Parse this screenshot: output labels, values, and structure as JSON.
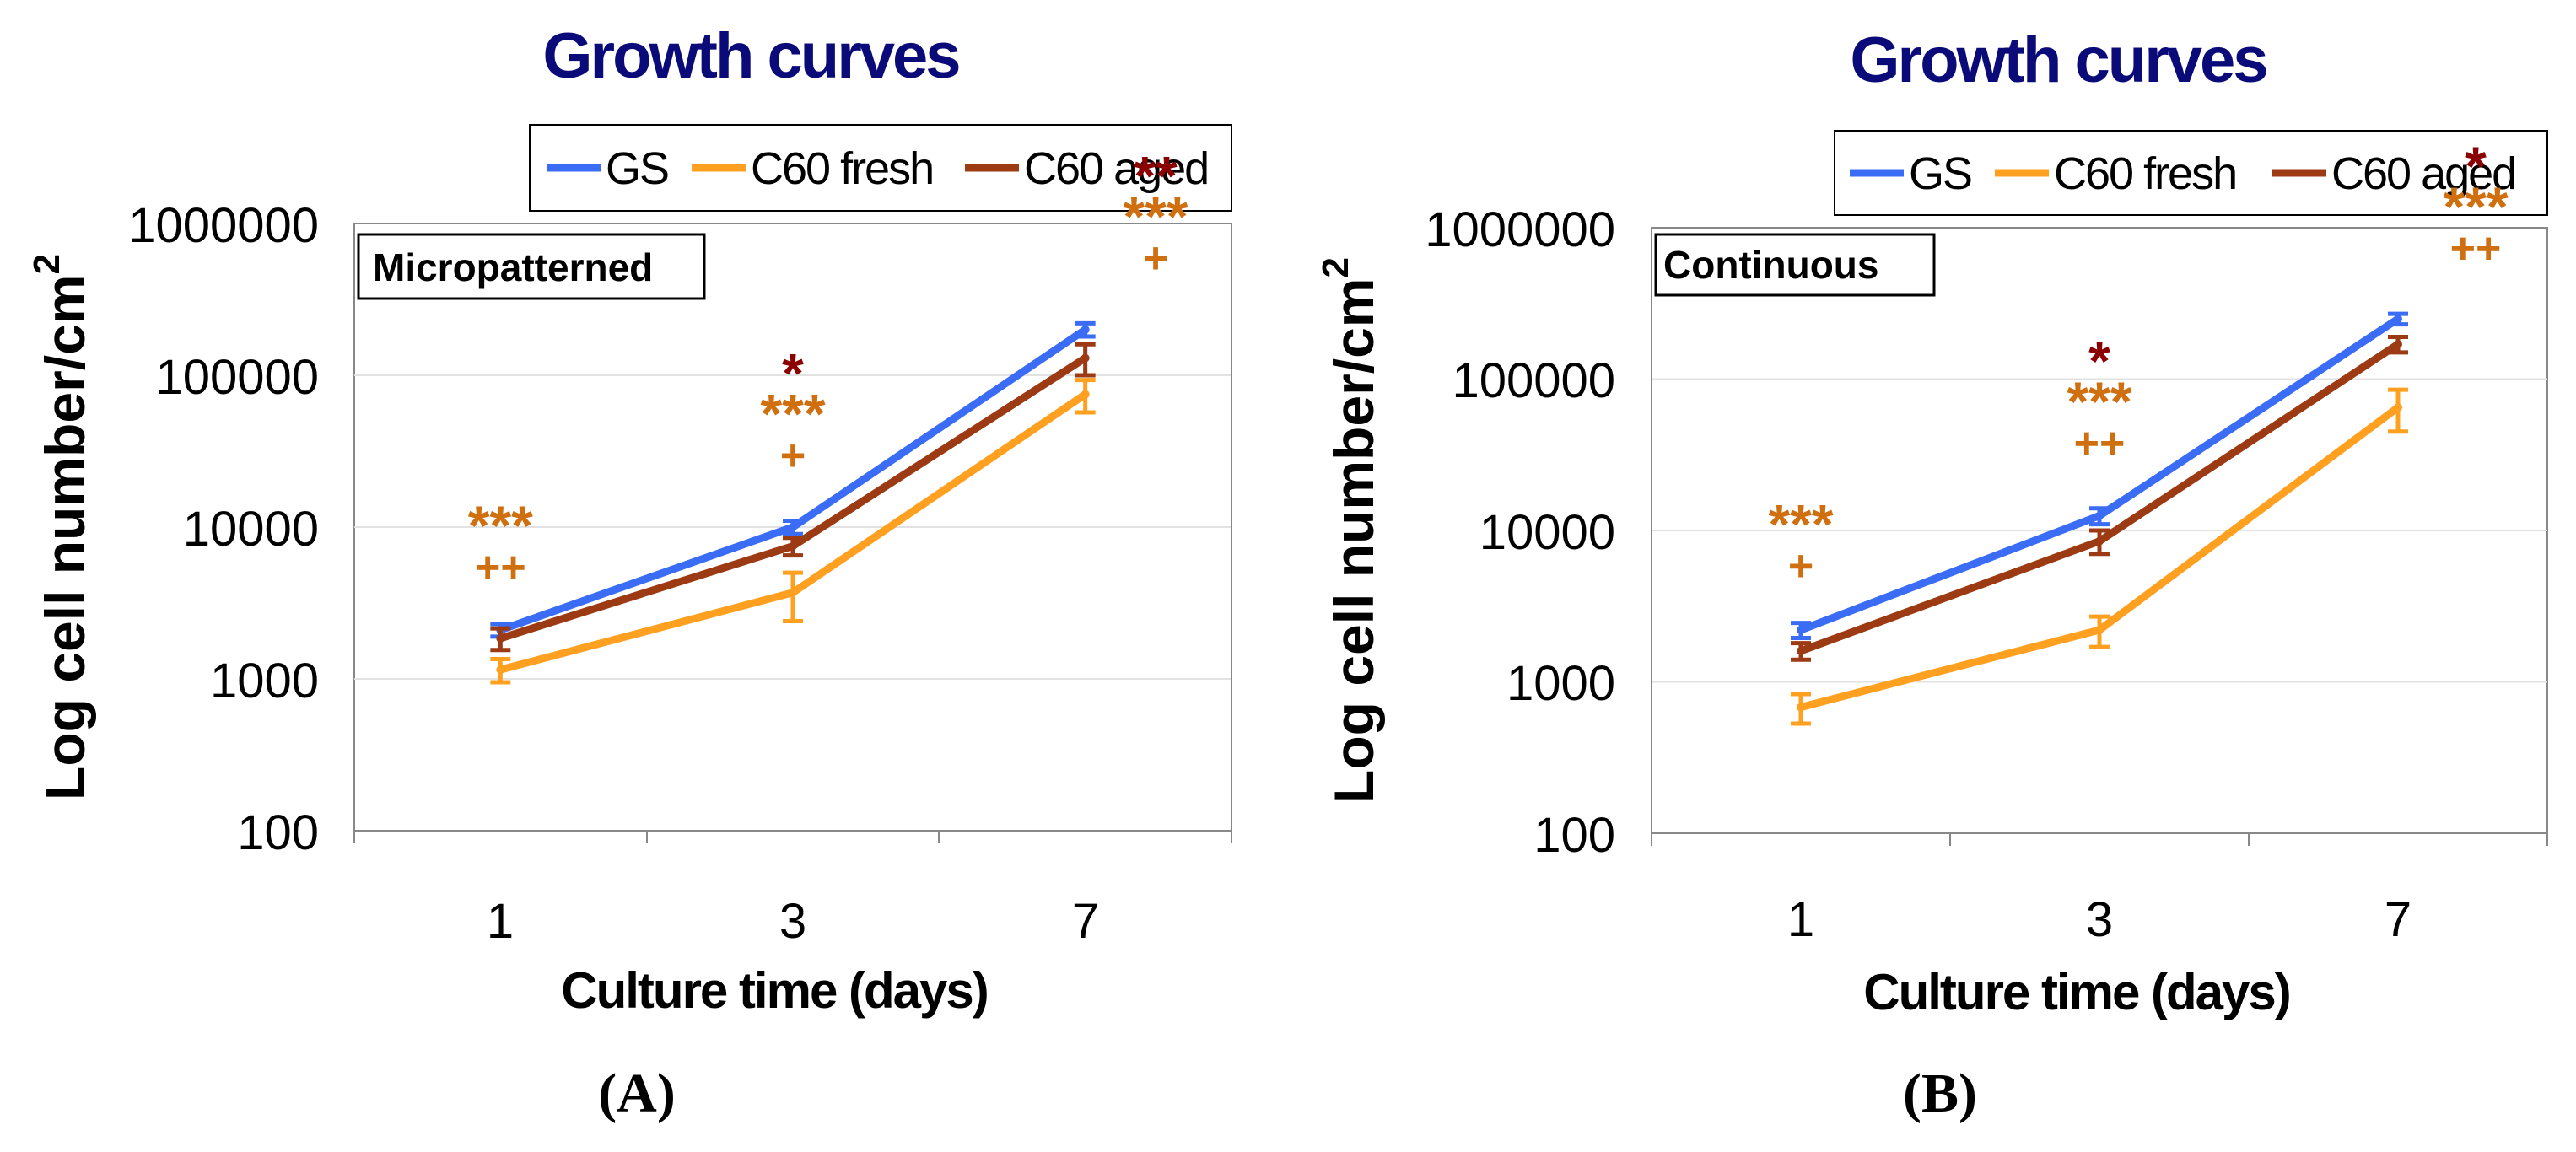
{
  "chart_data": [
    {
      "type": "line",
      "panel_label": "(A)",
      "title": "Growth curves",
      "box_label": "Micropatterned",
      "xlabel": "Culture time (days)",
      "ylabel": "Log cell number/cm",
      "ylabel_sup": "2",
      "yscale": "log",
      "ylim": [
        100,
        1000000
      ],
      "yticks": [
        "100",
        "1000",
        "10000",
        "100000",
        "1000000"
      ],
      "categories": [
        "1",
        "3",
        "7"
      ],
      "legend_position": "top",
      "series": [
        {
          "name": "GS",
          "color": "#3b6cf5",
          "values": [
            2100,
            10000,
            200000
          ],
          "err": [
            200,
            1000,
            20000
          ]
        },
        {
          "name": "C60 fresh",
          "color": "#ffa020",
          "values": [
            1150,
            3700,
            75000
          ],
          "err": [
            200,
            1300,
            18000
          ]
        },
        {
          "name": "C60 aged",
          "color": "#9c3a14",
          "values": [
            1850,
            7500,
            130000
          ],
          "err": [
            300,
            1000,
            30000
          ]
        }
      ],
      "annotations": [
        {
          "day": "1",
          "lines": [
            {
              "text": "***",
              "color": "#d06f10"
            },
            {
              "text": "++",
              "color": "#d06f10"
            }
          ]
        },
        {
          "day": "3",
          "lines": [
            {
              "text": "*",
              "color": "#8b0000"
            },
            {
              "text": "***",
              "color": "#d06f10"
            },
            {
              "text": "+",
              "color": "#d06f10"
            }
          ]
        },
        {
          "day": "7",
          "lines": [
            {
              "text": "**",
              "color": "#8b0000"
            },
            {
              "text": "***",
              "color": "#d06f10"
            },
            {
              "text": "+",
              "color": "#d06f10"
            }
          ]
        }
      ]
    },
    {
      "type": "line",
      "panel_label": "(B)",
      "title": "Growth curves",
      "box_label": "Continuous",
      "xlabel": "Culture time (days)",
      "ylabel": "Log cell number/cm",
      "ylabel_sup": "2",
      "yscale": "log",
      "ylim": [
        100,
        1000000
      ],
      "yticks": [
        "100",
        "1000",
        "10000",
        "100000",
        "1000000"
      ],
      "categories": [
        "1",
        "3",
        "7"
      ],
      "legend_position": "top",
      "series": [
        {
          "name": "GS",
          "color": "#3b6cf5",
          "values": [
            2200,
            12500,
            250000
          ],
          "err": [
            250,
            1500,
            20000
          ]
        },
        {
          "name": "C60 fresh",
          "color": "#ffa020",
          "values": [
            680,
            2200,
            65000
          ],
          "err": [
            150,
            500,
            20000
          ]
        },
        {
          "name": "C60 aged",
          "color": "#9c3a14",
          "values": [
            1600,
            8500,
            170000
          ],
          "err": [
            200,
            1500,
            20000
          ]
        }
      ],
      "annotations": [
        {
          "day": "1",
          "lines": [
            {
              "text": "***",
              "color": "#d06f10"
            },
            {
              "text": "+",
              "color": "#d06f10"
            }
          ]
        },
        {
          "day": "3",
          "lines": [
            {
              "text": "*",
              "color": "#8b0000"
            },
            {
              "text": "***",
              "color": "#d06f10"
            },
            {
              "text": "++",
              "color": "#d06f10"
            }
          ]
        },
        {
          "day": "7",
          "lines": [
            {
              "text": "*",
              "color": "#8b0000"
            },
            {
              "text": "***",
              "color": "#d06f10"
            },
            {
              "text": "++",
              "color": "#d06f10"
            }
          ]
        }
      ]
    }
  ]
}
